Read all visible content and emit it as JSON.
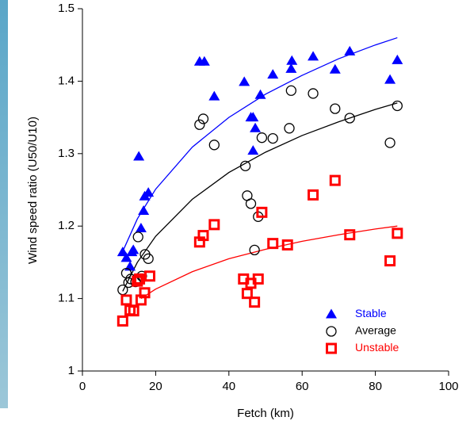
{
  "chart_data": {
    "type": "scatter",
    "xlabel": "Fetch (km)",
    "ylabel": "Wind speed ratio (U50/U10)",
    "xlim": [
      0,
      100
    ],
    "xticks": [
      0,
      20,
      40,
      60,
      80,
      100
    ],
    "ylim": [
      1,
      1.5
    ],
    "yticks": [
      1,
      1.1,
      1.2,
      1.3,
      1.4,
      1.5
    ],
    "legend": "lower right",
    "series": [
      {
        "name": "Stable",
        "color": "#0000ff",
        "marker": "triangle",
        "x": [
          11,
          12,
          13.5,
          13,
          13.9,
          15.4,
          16,
          16.7,
          17,
          18,
          32,
          33.3,
          36,
          44.2,
          46,
          46.6,
          47.2,
          46.6,
          48.6,
          52,
          57,
          57.2,
          63,
          69,
          73,
          84,
          86
        ],
        "values": [
          1.164,
          1.156,
          1.164,
          1.144,
          1.167,
          1.296,
          1.197,
          1.221,
          1.241,
          1.246,
          1.427,
          1.427,
          1.379,
          1.399,
          1.35,
          1.35,
          1.335,
          1.304,
          1.381,
          1.409,
          1.417,
          1.428,
          1.434,
          1.416,
          1.441,
          1.402,
          1.429
        ]
      },
      {
        "name": "Average",
        "color": "#000000",
        "marker": "circle",
        "x": [
          11,
          12,
          12.6,
          13.2,
          14.5,
          15.2,
          16.2,
          17.1,
          18,
          32,
          33,
          36,
          44.5,
          45,
          46,
          47,
          48,
          49,
          52,
          56.5,
          57,
          63,
          69,
          73,
          84,
          86
        ],
        "values": [
          1.112,
          1.135,
          1.122,
          1.127,
          1.123,
          1.185,
          1.131,
          1.161,
          1.155,
          1.34,
          1.348,
          1.312,
          1.283,
          1.242,
          1.231,
          1.167,
          1.213,
          1.322,
          1.321,
          1.335,
          1.387,
          1.383,
          1.362,
          1.349,
          1.315,
          1.366
        ]
      },
      {
        "name": "Unstable",
        "color": "#ff0000",
        "marker": "square",
        "x": [
          11,
          12,
          13,
          14,
          15,
          15.6,
          16,
          17,
          18.4,
          32,
          33,
          36,
          44,
          45,
          46,
          47,
          48,
          49,
          52,
          56,
          63,
          69,
          73,
          84,
          86
        ],
        "values": [
          1.069,
          1.098,
          1.084,
          1.083,
          1.124,
          1.127,
          1.098,
          1.108,
          1.131,
          1.178,
          1.187,
          1.202,
          1.127,
          1.107,
          1.121,
          1.095,
          1.127,
          1.219,
          1.176,
          1.174,
          1.243,
          1.263,
          1.188,
          1.152,
          1.19
        ]
      }
    ],
    "fits": [
      {
        "color": "#0000ff",
        "x": [
          11,
          15,
          20,
          30,
          40,
          50,
          60,
          70,
          80,
          86
        ],
        "values": [
          1.165,
          1.21,
          1.251,
          1.309,
          1.35,
          1.382,
          1.408,
          1.431,
          1.45,
          1.46
        ]
      },
      {
        "color": "#000000",
        "x": [
          11,
          15,
          20,
          30,
          40,
          50,
          60,
          70,
          80,
          86
        ],
        "values": [
          1.11,
          1.15,
          1.186,
          1.237,
          1.274,
          1.302,
          1.325,
          1.344,
          1.361,
          1.37
        ]
      },
      {
        "color": "#ff0000",
        "x": [
          16,
          20,
          30,
          40,
          50,
          60,
          70,
          80,
          86
        ],
        "values": [
          1.1,
          1.113,
          1.137,
          1.155,
          1.168,
          1.179,
          1.188,
          1.196,
          1.2
        ]
      }
    ]
  }
}
